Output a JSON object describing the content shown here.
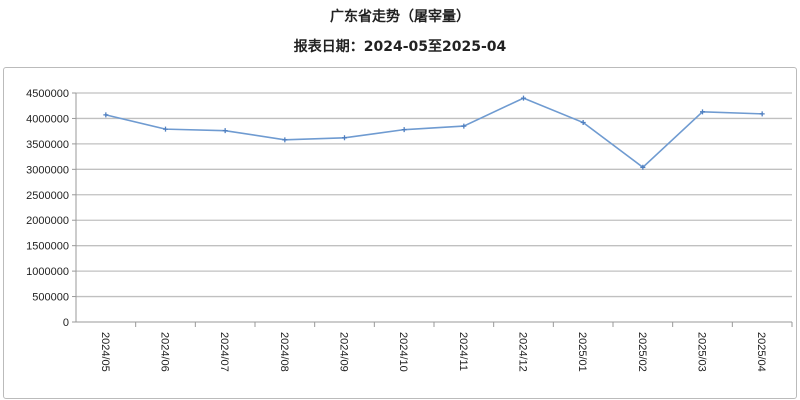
{
  "chart_data": {
    "type": "line",
    "title": "广东省走势（屠宰量）",
    "subtitle": "报表日期：2024-05至2025-04",
    "xlabel": "",
    "ylabel": "",
    "categories": [
      "2024/05",
      "2024/06",
      "2024/07",
      "2024/08",
      "2024/09",
      "2024/10",
      "2024/11",
      "2024/12",
      "2025/01",
      "2025/02",
      "2025/03",
      "2025/04"
    ],
    "values": [
      4070000,
      3790000,
      3760000,
      3580000,
      3620000,
      3780000,
      3850000,
      4400000,
      3920000,
      3040000,
      4130000,
      4090000
    ],
    "ylim": [
      0,
      4500000
    ],
    "yticks": [
      "0",
      "500000",
      "1000000",
      "1500000",
      "2000000",
      "2500000",
      "3000000",
      "3500000",
      "4000000",
      "4500000"
    ],
    "grid": true,
    "legend": "none",
    "line_color": "#6f9bd1",
    "grid_color": "#c0c0c0"
  }
}
